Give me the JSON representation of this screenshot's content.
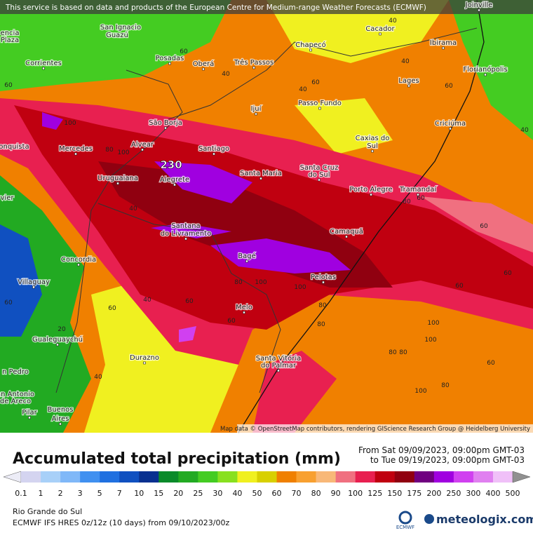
{
  "header": {
    "notice": "This service is based on data and products of the European Centre for Medium-range Weather Forecasts (ECMWF)"
  },
  "map": {
    "cities": [
      "Joinville",
      "San Ignacio",
      "Guazú",
      "Cacador",
      "Chapecó",
      "Ibirama",
      "Posadas",
      "Oberá",
      "Três Passos",
      "encia",
      "Plaza",
      "Corrientes",
      "Florianópolis",
      "Lages",
      "Passo Fundo",
      "Ijuí",
      "São Borja",
      "Criciúma",
      "Alvear",
      "onquista",
      "Mercedes",
      "Santiago",
      "Caxias do",
      "Sul",
      "Santa Cruz",
      "do Sul",
      "Santa Maria",
      "Uruguaiana",
      "Alegrete",
      "Porto Alegre",
      "Tramandaí",
      "Santana",
      "do Livramento",
      "Camaquã",
      "vier",
      "Concordia",
      "Bagé",
      "Pelotas",
      "Villaguay",
      "Melo",
      "Gualeguaychú",
      "Durazno",
      "Santa Vitória",
      "do Palmar",
      "n Pedro",
      "an Antonio",
      "de Areco",
      "Pilar",
      "Buenos",
      "Aires"
    ],
    "contour_labels": [
      230,
      60,
      40,
      60,
      40,
      40,
      60,
      40,
      60,
      100,
      80,
      100,
      100,
      80,
      100,
      60,
      60,
      60,
      100,
      60,
      100,
      80,
      40,
      60,
      80,
      80,
      60,
      40,
      20,
      40,
      60,
      80,
      100,
      80,
      60,
      40,
      60,
      80
    ],
    "attribution": "Map data © OpenStreetMap contributors, rendering GIScience Research Group @ Heidelberg University"
  },
  "legend": {
    "title": "Accumulated total precipitation (mm)",
    "period_from": "From Sat 09/09/2023, 09:00pm GMT-03",
    "period_to": "to Tue 09/19/2023, 09:00pm GMT-03",
    "levels": [
      0.1,
      1,
      2,
      3,
      5,
      7,
      10,
      15,
      20,
      25,
      30,
      40,
      50,
      60,
      70,
      80,
      90,
      100,
      125,
      150,
      175,
      200,
      250,
      300,
      400,
      500
    ],
    "colors": [
      "#ececf6",
      "#d4d4f0",
      "#a8d0f8",
      "#80b8f8",
      "#4090f0",
      "#2070e0",
      "#1050c0",
      "#083090",
      "#0a8a2a",
      "#22aa22",
      "#44cc22",
      "#88e020",
      "#f0f020",
      "#d8d000",
      "#f08000",
      "#f8a030",
      "#f8b878",
      "#f07080",
      "#e82050",
      "#c00010",
      "#900010",
      "#700080",
      "#a000e0",
      "#d040f0",
      "#e080f0",
      "#f0c0f8",
      "#909090"
    ]
  },
  "footer": {
    "region": "Rio Grande do Sul",
    "model": "ECMWF IFS HRES 0z/12z (10 days) from 09/10/2023/00z",
    "ecmwf": "ECMWF",
    "brand": "meteologix.com"
  }
}
